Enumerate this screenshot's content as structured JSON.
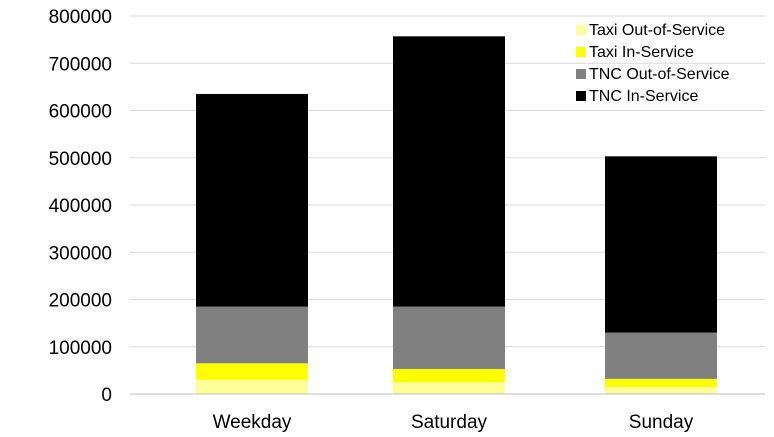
{
  "chart_data": {
    "type": "bar",
    "stacked": true,
    "categories": [
      "Weekday",
      "Saturday",
      "Sunday"
    ],
    "series": [
      {
        "name": "Taxi Out-of-Service",
        "color": "#FFFF99",
        "values": [
          30000,
          25000,
          15000
        ]
      },
      {
        "name": "Taxi In-Service",
        "color": "#FFFF00",
        "values": [
          35000,
          28000,
          17000
        ]
      },
      {
        "name": "TNC Out-of-Service",
        "color": "#808080",
        "values": [
          120000,
          132000,
          98000
        ]
      },
      {
        "name": "TNC In-Service",
        "color": "#000000",
        "values": [
          450000,
          572000,
          373000
        ]
      }
    ],
    "ylim": [
      0,
      800000
    ],
    "yticks": [
      0,
      100000,
      200000,
      300000,
      400000,
      500000,
      600000,
      700000,
      800000
    ],
    "grid": true,
    "legend": "top-right"
  }
}
